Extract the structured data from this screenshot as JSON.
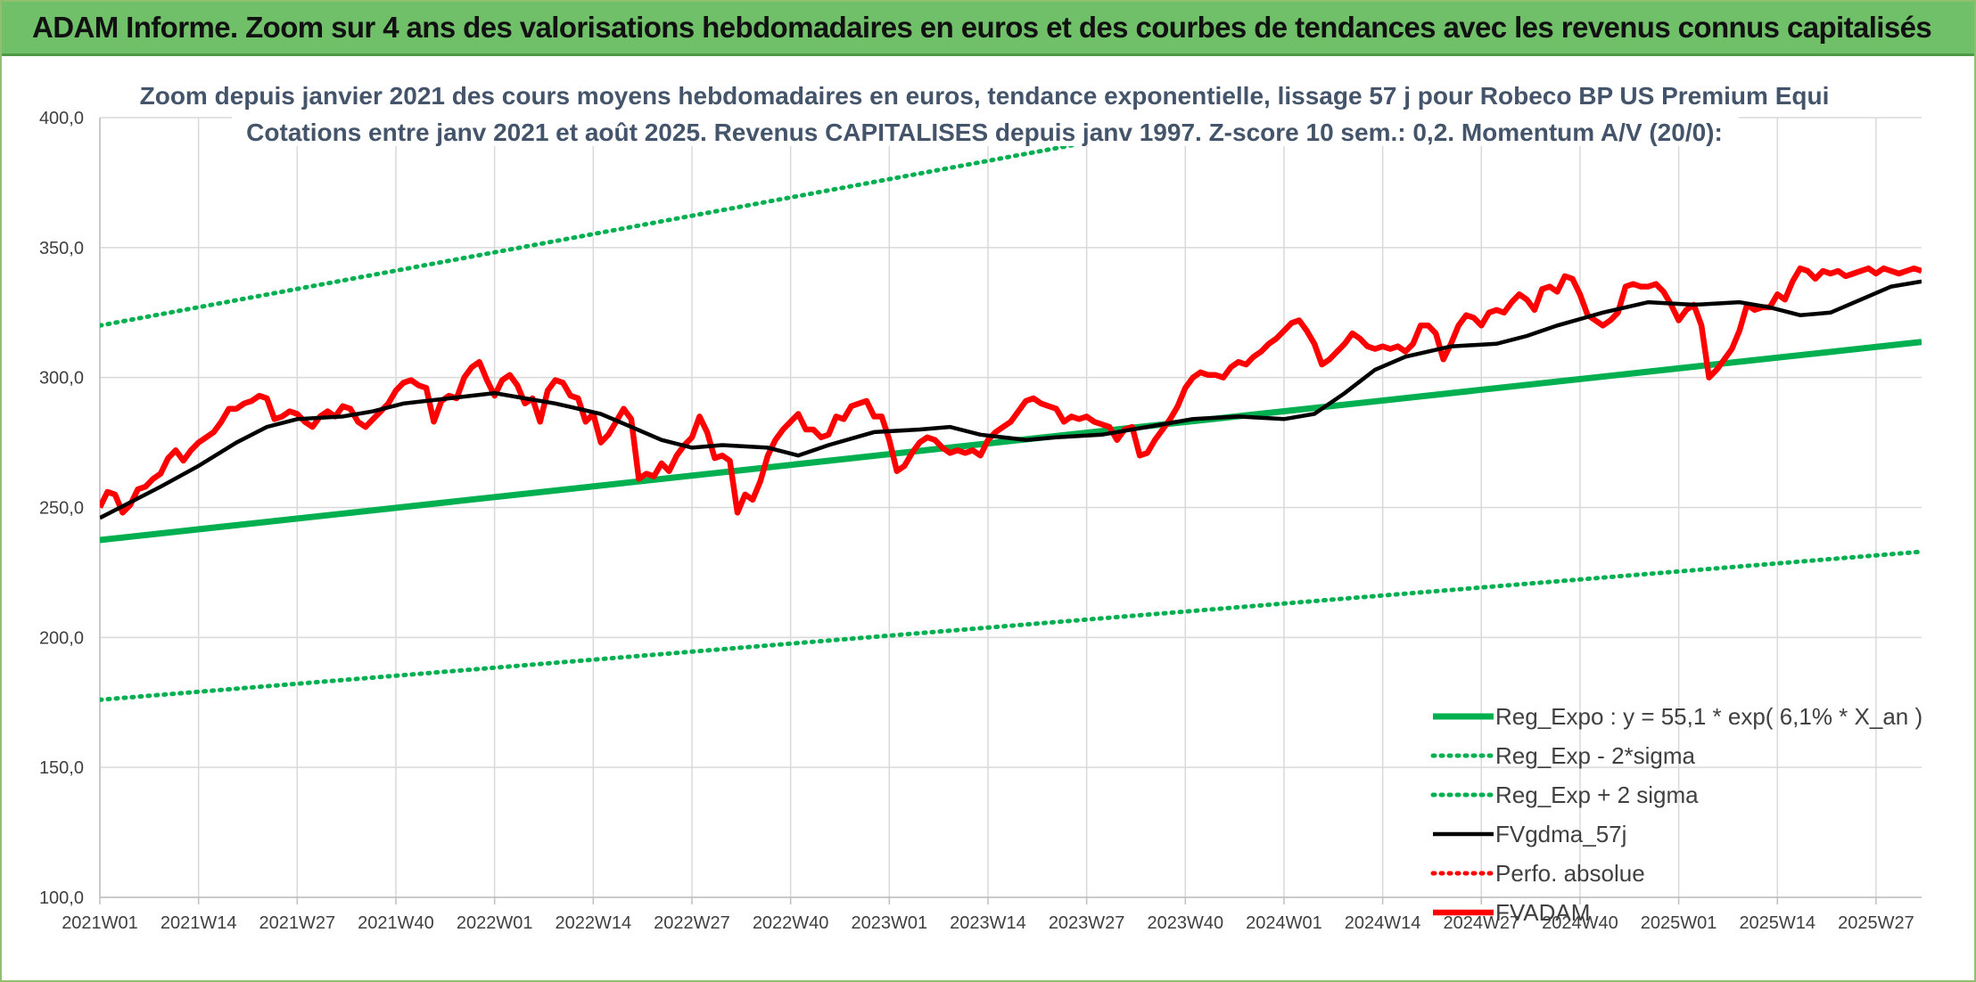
{
  "header": {
    "title": "ADAM Informe. Zoom sur 4 ans des valorisations hebdomadaires en euros et des courbes de tendances avec les revenus connus capitalisés"
  },
  "chart_data": {
    "type": "line",
    "title_line1": "Zoom depuis janvier 2021 des cours moyens hebdomadaires en euros, tendance exponentielle, lissage 57 j pour Robeco BP US Premium Equi",
    "title_line2": "Cotations entre janv 2021 et août 2025. Revenus CAPITALISES depuis janv 1997. Z-score 10 sem.: 0,2. Momentum A/V (20/0):",
    "ylim": [
      100,
      400
    ],
    "yticks": [
      "400,0",
      "350,0",
      "300,0",
      "250,0",
      "200,0",
      "150,0",
      "100,0"
    ],
    "ytick_values": [
      400,
      350,
      300,
      250,
      200,
      150,
      100
    ],
    "x_tick_labels": [
      "2021W01",
      "2021W14",
      "2021W27",
      "2021W40",
      "2022W01",
      "2022W14",
      "2022W27",
      "2022W40",
      "2023W01",
      "2023W14",
      "2023W27",
      "2023W40",
      "2024W01",
      "2024W14",
      "2024W27",
      "2024W40",
      "2025W01",
      "2025W14",
      "2025W27"
    ],
    "weeks_per_tick": 13,
    "total_weeks": 240,
    "grid": true,
    "legend_position": "bottom-right",
    "colors": {
      "reg": "#00b050",
      "gdma": "#000000",
      "fvadam": "#ff0000",
      "grid": "#d9d9d9"
    },
    "series": [
      {
        "name": "Reg_Expo : y = 55,1 * exp( 6,1% *  X_an )",
        "style": "solid",
        "color": "#00b050",
        "x": [
          0,
          240
        ],
        "y": [
          237.5,
          313.7
        ]
      },
      {
        "name": "Reg_Exp - 2*sigma",
        "style": "dotted",
        "color": "#00b050",
        "x": [
          0,
          240
        ],
        "y": [
          176,
          233
        ]
      },
      {
        "name": "Reg_Exp + 2 sigma",
        "style": "dotted",
        "color": "#00b050",
        "x": [
          0,
          240
        ],
        "y": [
          320,
          450
        ]
      },
      {
        "name": "FVgdma_57j",
        "style": "solid",
        "color": "#000000",
        "x": [
          0,
          8,
          13,
          18,
          22,
          26,
          32,
          36,
          40,
          46,
          52,
          56,
          60,
          66,
          70,
          74,
          78,
          82,
          88,
          92,
          96,
          102,
          108,
          112,
          116,
          122,
          126,
          132,
          138,
          144,
          150,
          156,
          160,
          164,
          168,
          172,
          178,
          184,
          188,
          192,
          198,
          204,
          210,
          216,
          220,
          224,
          228,
          232,
          236,
          240
        ],
        "y": [
          246,
          258,
          266,
          275,
          281,
          284,
          285,
          287,
          290,
          292,
          294,
          292,
          290,
          286,
          281,
          276,
          273,
          274,
          273,
          270,
          274,
          279,
          280,
          281,
          278,
          276,
          277,
          278,
          281,
          284,
          285,
          284,
          286,
          294,
          303,
          308,
          312,
          313,
          316,
          320,
          325,
          329,
          328,
          329,
          327,
          324,
          325,
          330,
          335,
          337
        ]
      },
      {
        "name": "Perfo. absolue",
        "style": "dotted",
        "color": "#ff0000",
        "x": [],
        "y": []
      },
      {
        "name": "FVADAM",
        "style": "solid",
        "color": "#ff0000",
        "x": [
          0,
          1,
          2,
          3,
          4,
          5,
          6,
          7,
          8,
          9,
          10,
          11,
          12,
          13,
          14,
          15,
          16,
          17,
          18,
          19,
          20,
          21,
          22,
          23,
          24,
          25,
          26,
          27,
          28,
          29,
          30,
          31,
          32,
          33,
          34,
          35,
          36,
          37,
          38,
          39,
          40,
          41,
          42,
          43,
          44,
          45,
          46,
          47,
          48,
          49,
          50,
          51,
          52,
          53,
          54,
          55,
          56,
          57,
          58,
          59,
          60,
          61,
          62,
          63,
          64,
          65,
          66,
          67,
          68,
          69,
          70,
          71,
          72,
          73,
          74,
          75,
          76,
          77,
          78,
          79,
          80,
          81,
          82,
          83,
          84,
          85,
          86,
          87,
          88,
          89,
          90,
          91,
          92,
          93,
          94,
          95,
          96,
          97,
          98,
          99,
          100,
          101,
          102,
          103,
          104,
          105,
          106,
          107,
          108,
          109,
          110,
          111,
          112,
          113,
          114,
          115,
          116,
          117,
          118,
          119,
          120,
          121,
          122,
          123,
          124,
          125,
          126,
          127,
          128,
          129,
          130,
          131,
          132,
          133,
          134,
          135,
          136,
          137,
          138,
          139,
          140,
          141,
          142,
          143,
          144,
          145,
          146,
          147,
          148,
          149,
          150,
          151,
          152,
          153,
          154,
          155,
          156,
          157,
          158,
          159,
          160,
          161,
          162,
          163,
          164,
          165,
          166,
          167,
          168,
          169,
          170,
          171,
          172,
          173,
          174,
          175,
          176,
          177,
          178,
          179,
          180,
          181,
          182,
          183,
          184,
          185,
          186,
          187,
          188,
          189,
          190,
          191,
          192,
          193,
          194,
          195,
          196,
          197,
          198,
          199,
          200,
          201,
          202,
          203,
          204,
          205,
          206,
          207,
          208,
          209,
          210,
          211,
          212,
          213,
          214,
          215,
          216,
          217,
          218,
          219,
          220,
          221,
          222,
          223,
          224,
          225,
          226,
          227,
          228,
          229,
          230,
          231,
          232,
          233,
          234,
          235,
          236,
          237,
          238,
          239,
          240
        ],
        "y": [
          250,
          256,
          255,
          248,
          251,
          257,
          258,
          261,
          263,
          269,
          272,
          268,
          272,
          275,
          277,
          279,
          283,
          288,
          288,
          290,
          291,
          293,
          292,
          284,
          285,
          287,
          286,
          283,
          281,
          285,
          287,
          285,
          289,
          288,
          283,
          281,
          284,
          287,
          290,
          295,
          298,
          299,
          297,
          296,
          283,
          291,
          293,
          292,
          300,
          304,
          306,
          299,
          293,
          299,
          301,
          297,
          290,
          292,
          283,
          295,
          299,
          298,
          293,
          292,
          283,
          286,
          275,
          278,
          283,
          288,
          284,
          261,
          263,
          262,
          267,
          264,
          270,
          274,
          277,
          285,
          279,
          269,
          270,
          268,
          248,
          255,
          253,
          260,
          270,
          276,
          280,
          283,
          286,
          280,
          280,
          277,
          278,
          285,
          284,
          289,
          290,
          291,
          285,
          285,
          276,
          264,
          266,
          271,
          275,
          277,
          276,
          273,
          271,
          272,
          271,
          272,
          270,
          276,
          279,
          281,
          283,
          287,
          291,
          292,
          290,
          289,
          288,
          283,
          285,
          284,
          285,
          283,
          282,
          281,
          276,
          280,
          281,
          270,
          271,
          276,
          280,
          284,
          289,
          296,
          300,
          302,
          301,
          301,
          300,
          304,
          306,
          305,
          308,
          310,
          313,
          315,
          318,
          321,
          322,
          318,
          313,
          305,
          307,
          310,
          313,
          317,
          315,
          312,
          311,
          312,
          311,
          312,
          310,
          313,
          320,
          320,
          317,
          307,
          313,
          320,
          324,
          323,
          320,
          325,
          326,
          325,
          329,
          332,
          330,
          326,
          334,
          335,
          333,
          339,
          338,
          332,
          324,
          322,
          320,
          322,
          325,
          335,
          336,
          335,
          335,
          336,
          333,
          328,
          322,
          326,
          328,
          320,
          300,
          303,
          307,
          311,
          318,
          328,
          326,
          327,
          327,
          332,
          330,
          337,
          342,
          341,
          338,
          341,
          340,
          341,
          339,
          340,
          341,
          342,
          340,
          342,
          341,
          340,
          341,
          342,
          341
        ]
      }
    ]
  }
}
